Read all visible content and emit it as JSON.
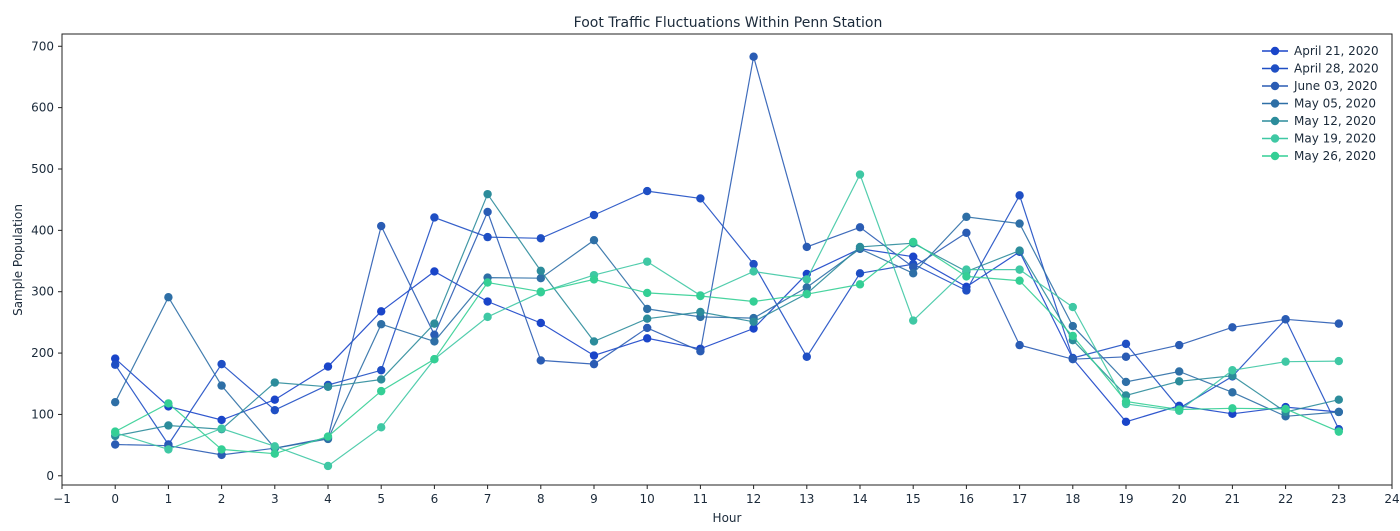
{
  "chart_data": {
    "type": "line",
    "title": "Foot Traffic Fluctuations Within Penn Station",
    "xlabel": "Hour",
    "ylabel": "Sample Population",
    "xlim": [
      -1,
      24
    ],
    "ylim": [
      -15,
      720
    ],
    "xticks": [
      -1,
      0,
      1,
      2,
      3,
      4,
      5,
      6,
      7,
      8,
      9,
      10,
      11,
      12,
      13,
      14,
      15,
      16,
      17,
      18,
      19,
      20,
      21,
      22,
      23,
      24
    ],
    "yticks": [
      0,
      100,
      200,
      300,
      400,
      500,
      600,
      700
    ],
    "grid": false,
    "legend_position": "top-right",
    "x": [
      0,
      1,
      2,
      3,
      4,
      5,
      6,
      7,
      8,
      9,
      10,
      11,
      12,
      13,
      14,
      15,
      16,
      17,
      18,
      19,
      20,
      21,
      22,
      23
    ],
    "series": [
      {
        "name": "April 21, 2020",
        "color": "#1a45c9",
        "values": [
          191,
          113,
          91,
          124,
          178,
          268,
          333,
          284,
          249,
          196,
          224,
          207,
          240,
          329,
          370,
          357,
          308,
          365,
          191,
          88,
          114,
          101,
          112,
          104
        ]
      },
      {
        "name": "April 28, 2020",
        "color": "#1f4fc4",
        "values": [
          181,
          51,
          182,
          107,
          148,
          172,
          421,
          389,
          387,
          425,
          464,
          452,
          345,
          194,
          330,
          345,
          302,
          457,
          192,
          215,
          110,
          162,
          255,
          76
        ]
      },
      {
        "name": "June 03, 2020",
        "color": "#2a5cb4",
        "values": [
          51,
          49,
          34,
          45,
          62,
          407,
          230,
          430,
          188,
          182,
          241,
          203,
          683,
          373,
          405,
          340,
          396,
          213,
          190,
          194,
          213,
          242,
          255,
          248
        ]
      },
      {
        "name": "May 05, 2020",
        "color": "#2e6fa6",
        "values": [
          120,
          291,
          147,
          45,
          60,
          247,
          219,
          323,
          322,
          384,
          272,
          259,
          257,
          307,
          370,
          330,
          422,
          411,
          244,
          153,
          170,
          136,
          97,
          104
        ]
      },
      {
        "name": "May 12, 2020",
        "color": "#2c8c9b",
        "values": [
          65,
          82,
          76,
          152,
          145,
          157,
          248,
          459,
          334,
          219,
          256,
          267,
          251,
          297,
          373,
          379,
          333,
          367,
          221,
          131,
          154,
          163,
          104,
          124
        ]
      },
      {
        "name": "May 19, 2020",
        "color": "#3fc8a4",
        "values": [
          70,
          43,
          77,
          48,
          16,
          79,
          190,
          259,
          299,
          327,
          349,
          294,
          333,
          320,
          491,
          253,
          336,
          336,
          275,
          117,
          106,
          172,
          186,
          187
        ]
      },
      {
        "name": "May 26, 2020",
        "color": "#34cf95",
        "values": [
          72,
          118,
          43,
          36,
          64,
          138,
          190,
          315,
          300,
          320,
          298,
          293,
          284,
          296,
          312,
          381,
          325,
          318,
          228,
          121,
          108,
          110,
          109,
          72
        ]
      }
    ]
  }
}
